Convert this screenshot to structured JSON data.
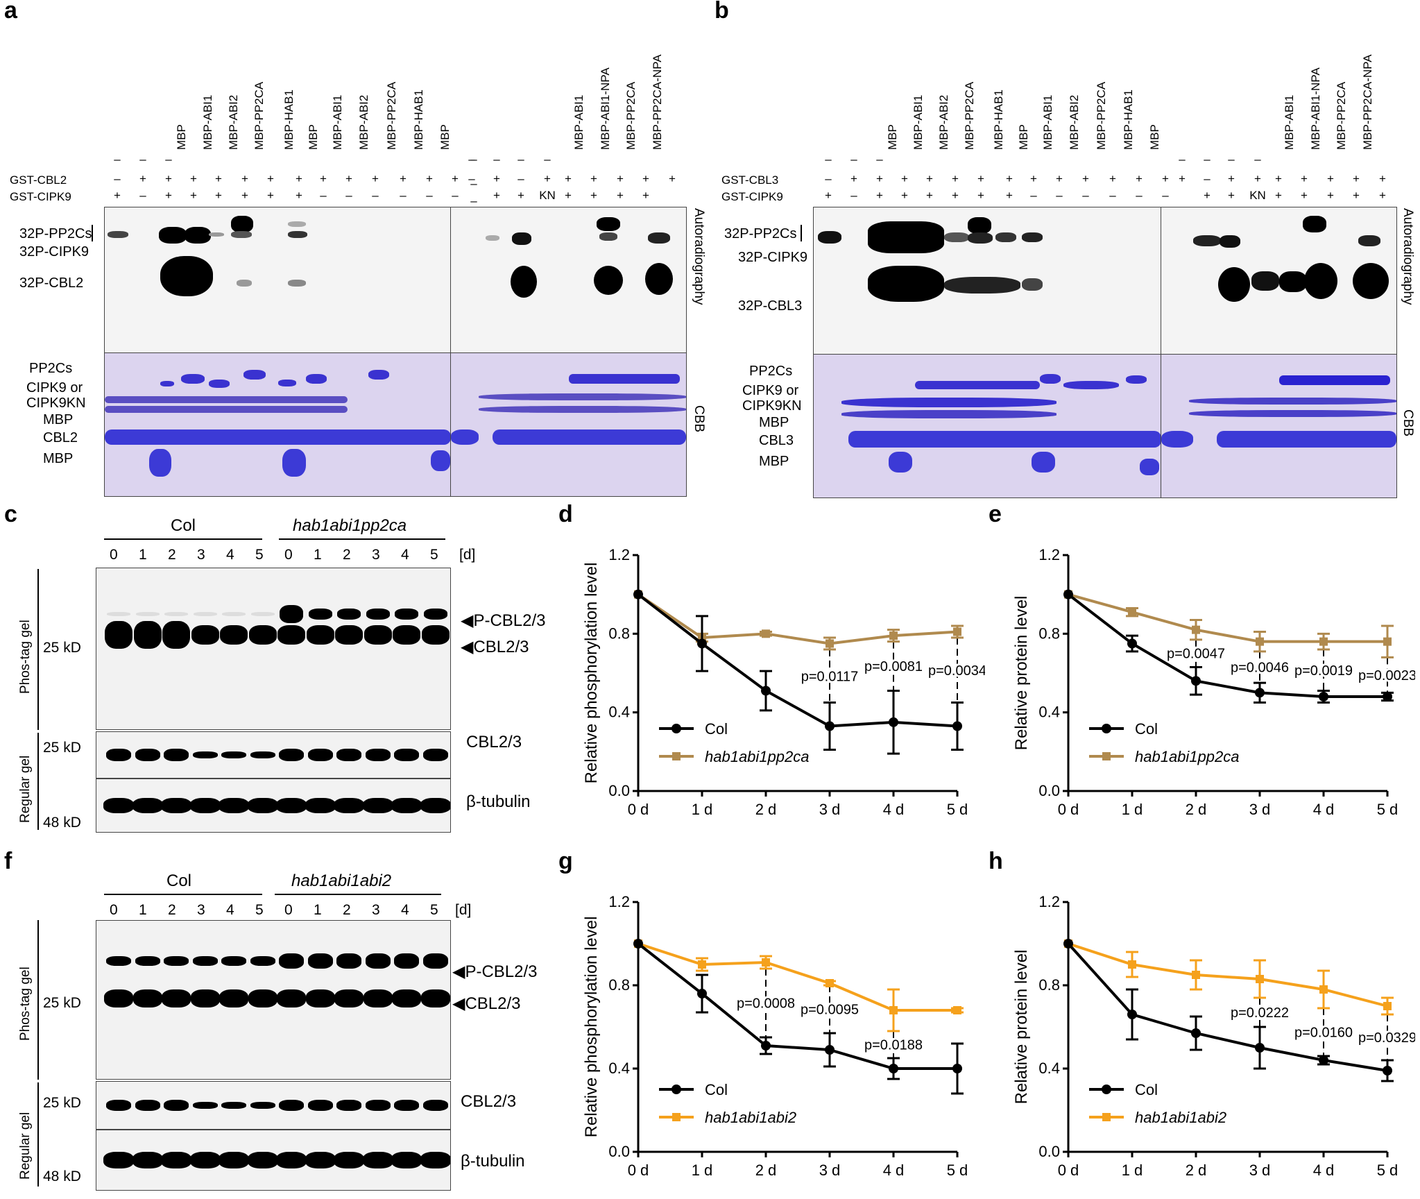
{
  "panel_a": {
    "label": "a",
    "row_labels": [
      "GST-CBL2",
      "GST-CIPK9"
    ],
    "left_columns": [
      "MBP",
      "MBP-ABI1",
      "MBP-ABI2",
      "MBP-PP2CA",
      "MBP-HAB1",
      "MBP",
      "MBP-ABI1",
      "MBP-ABI2",
      "MBP-PP2CA",
      "MBP-HAB1",
      "MBP"
    ],
    "right_columns": [
      "MBP-ABI1",
      "MBP-ABI1-NPA",
      "MBP-PP2CA",
      "MBP-PP2CA-NPA"
    ],
    "autorad_labels": [
      "32P-PP2Cs",
      "32P-CIPK9",
      "32P-CBL2"
    ],
    "cbb_labels": [
      "PP2Cs",
      "CIPK9 or",
      "CIPK9KN",
      "MBP",
      "CBL2",
      "MBP"
    ],
    "side_autorad": "Autoradiography",
    "side_cbb": "CBB",
    "kn": "KN",
    "minus": "–",
    "plus": "+"
  },
  "panel_b": {
    "label": "b",
    "row_labels": [
      "GST-CBL3",
      "GST-CIPK9"
    ],
    "left_columns": [
      "MBP",
      "MBP-ABI1",
      "MBP-ABI2",
      "MBP-PP2CA",
      "MBP-HAB1",
      "MBP",
      "MBP-ABI1",
      "MBP-ABI2",
      "MBP-PP2CA",
      "MBP-HAB1",
      "MBP"
    ],
    "right_columns": [
      "MBP-ABI1",
      "MBP-ABI1-NPA",
      "MBP-PP2CA",
      "MBP-PP2CA-NPA"
    ],
    "autorad_labels": [
      "32P-PP2Cs",
      "32P-CIPK9",
      "32P-CBL3"
    ],
    "cbb_labels": [
      "PP2Cs",
      "CIPK9 or",
      "CIPK9KN",
      "MBP",
      "CBL3",
      "MBP"
    ],
    "side_autorad": "Autoradiography",
    "side_cbb": "CBB",
    "kn": "KN"
  },
  "panel_c": {
    "label": "c",
    "group1": "Col",
    "group2": "hab1abi1pp2ca",
    "days": [
      "0",
      "1",
      "2",
      "3",
      "4",
      "5",
      "0",
      "1",
      "2",
      "3",
      "4",
      "5"
    ],
    "unit": "[d]",
    "phostag": "Phos-tag gel",
    "regular": "Regular gel",
    "band_labels": [
      "P-CBL2/3",
      "CBL2/3",
      "CBL2/3",
      "β-tubulin"
    ],
    "kd": [
      "25 kD",
      "25 kD",
      "48 kD"
    ]
  },
  "panel_f": {
    "label": "f",
    "group1": "Col",
    "group2": "hab1abi1abi2",
    "days": [
      "0",
      "1",
      "2",
      "3",
      "4",
      "5",
      "0",
      "1",
      "2",
      "3",
      "4",
      "5"
    ],
    "unit": "[d]",
    "phostag": "Phos-tag gel",
    "regular": "Regular gel",
    "band_labels": [
      "P-CBL2/3",
      "CBL2/3",
      "CBL2/3",
      "β-tubulin"
    ],
    "kd": [
      "25 kD",
      "25 kD",
      "48 kD"
    ]
  },
  "colors": {
    "col": "#000000",
    "brown": "#b08a4e",
    "orange": "#f5a11c"
  },
  "chart_data": [
    {
      "id": "d",
      "type": "line",
      "ylabel": "Relative phosphorylation level",
      "categories": [
        "0 d",
        "1 d",
        "2 d",
        "3 d",
        "4 d",
        "5 d"
      ],
      "ylim": [
        0,
        1.2
      ],
      "yticks": [
        "0.0",
        "0.4",
        "0.8",
        "1.2"
      ],
      "series": [
        {
          "name": "Col",
          "color": "#000000",
          "values": [
            1.0,
            0.75,
            0.51,
            0.33,
            0.35,
            0.33
          ],
          "err": [
            0,
            0.14,
            0.1,
            0.12,
            0.16,
            0.12
          ]
        },
        {
          "name": "hab1abi1pp2ca",
          "color": "#b08a4e",
          "values": [
            1.0,
            0.78,
            0.8,
            0.75,
            0.79,
            0.81
          ],
          "err": [
            0,
            0.02,
            0.01,
            0.03,
            0.03,
            0.03
          ]
        }
      ],
      "pvalues": [
        {
          "x": 3,
          "text": "p=0.0117"
        },
        {
          "x": 4,
          "text": "p=0.0081"
        },
        {
          "x": 5,
          "text": "p=0.0034"
        }
      ],
      "legend_italic": true
    },
    {
      "id": "e",
      "type": "line",
      "ylabel": "Relative protein level",
      "categories": [
        "0 d",
        "1 d",
        "2 d",
        "3 d",
        "4 d",
        "5 d"
      ],
      "ylim": [
        0,
        1.2
      ],
      "yticks": [
        "0.0",
        "0.4",
        "0.8",
        "1.2"
      ],
      "series": [
        {
          "name": "Col",
          "color": "#000000",
          "values": [
            1.0,
            0.75,
            0.56,
            0.5,
            0.48,
            0.48
          ],
          "err": [
            0,
            0.04,
            0.07,
            0.05,
            0.03,
            0.02
          ]
        },
        {
          "name": "hab1abi1pp2ca",
          "color": "#b08a4e",
          "values": [
            1.0,
            0.91,
            0.82,
            0.76,
            0.76,
            0.76
          ],
          "err": [
            0,
            0.02,
            0.05,
            0.05,
            0.04,
            0.08
          ]
        }
      ],
      "pvalues": [
        {
          "x": 2,
          "text": "p=0.0047"
        },
        {
          "x": 3,
          "text": "p=0.0046"
        },
        {
          "x": 4,
          "text": "p=0.0019"
        },
        {
          "x": 5,
          "text": "p=0.0023"
        }
      ],
      "legend_italic": true
    },
    {
      "id": "g",
      "type": "line",
      "ylabel": "Relative phosphorylation level",
      "categories": [
        "0 d",
        "1 d",
        "2 d",
        "3 d",
        "4 d",
        "5 d"
      ],
      "ylim": [
        0,
        1.2
      ],
      "yticks": [
        "0.0",
        "0.4",
        "0.8",
        "1.2"
      ],
      "series": [
        {
          "name": "Col",
          "color": "#000000",
          "values": [
            1.0,
            0.76,
            0.51,
            0.49,
            0.4,
            0.4
          ],
          "err": [
            0,
            0.09,
            0.04,
            0.08,
            0.05,
            0.12
          ]
        },
        {
          "name": "hab1abi1abi2",
          "color": "#f5a11c",
          "values": [
            1.0,
            0.9,
            0.91,
            0.81,
            0.68,
            0.68
          ],
          "err": [
            0,
            0.03,
            0.03,
            0.01,
            0.1,
            0.01
          ]
        }
      ],
      "pvalues": [
        {
          "x": 2,
          "text": "p=0.0008"
        },
        {
          "x": 3,
          "text": "p=0.0095"
        },
        {
          "x": 4,
          "text": "p=0.0188"
        }
      ],
      "legend_italic": true
    },
    {
      "id": "h",
      "type": "line",
      "ylabel": "Relative protein level",
      "categories": [
        "0 d",
        "1 d",
        "2 d",
        "3 d",
        "4 d",
        "5 d"
      ],
      "ylim": [
        0,
        1.2
      ],
      "yticks": [
        "0.0",
        "0.4",
        "0.8",
        "1.2"
      ],
      "series": [
        {
          "name": "Col",
          "color": "#000000",
          "values": [
            1.0,
            0.66,
            0.57,
            0.5,
            0.44,
            0.39
          ],
          "err": [
            0,
            0.12,
            0.08,
            0.1,
            0.02,
            0.05
          ]
        },
        {
          "name": "hab1abi1abi2",
          "color": "#f5a11c",
          "values": [
            1.0,
            0.9,
            0.85,
            0.83,
            0.78,
            0.7
          ],
          "err": [
            0,
            0.06,
            0.07,
            0.09,
            0.09,
            0.04
          ]
        }
      ],
      "pvalues": [
        {
          "x": 3,
          "text": "p=0.0222"
        },
        {
          "x": 4,
          "text": "p=0.0160"
        },
        {
          "x": 5,
          "text": "p=0.0329"
        }
      ],
      "legend_italic": true
    }
  ]
}
